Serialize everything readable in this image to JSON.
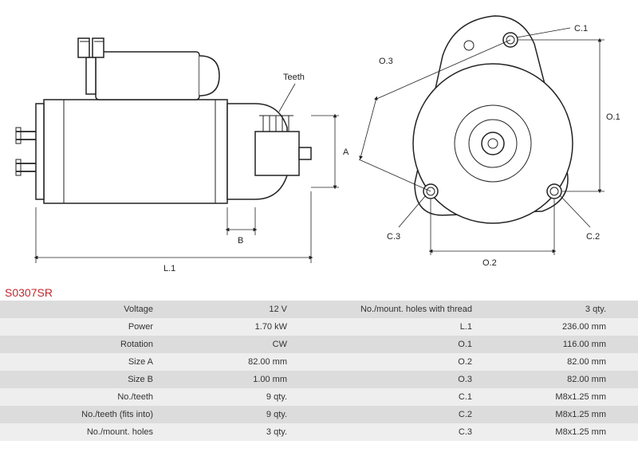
{
  "part_number": "S0307SR",
  "diagram": {
    "type": "engineering-drawing",
    "stroke_color": "#222222",
    "background_color": "#ffffff",
    "label_fontsize": 11,
    "side_view": {
      "labels": {
        "teeth": "Teeth",
        "A": "A",
        "B": "B",
        "L1": "L.1"
      }
    },
    "front_view": {
      "labels": {
        "O1": "O.1",
        "O2": "O.2",
        "O3": "O.3",
        "C1": "C.1",
        "C2": "C.2",
        "C3": "C.3"
      }
    }
  },
  "spec_table": {
    "header_bg_odd": "#dcdcdc",
    "header_bg_even": "#eeeeee",
    "text_color": "#333333",
    "fontsize": 11,
    "rows": [
      {
        "l1": "Voltage",
        "v1": "12 V",
        "l2": "No./mount. holes with thread",
        "v2": "3 qty."
      },
      {
        "l1": "Power",
        "v1": "1.70 kW",
        "l2": "L.1",
        "v2": "236.00 mm"
      },
      {
        "l1": "Rotation",
        "v1": "CW",
        "l2": "O.1",
        "v2": "116.00 mm"
      },
      {
        "l1": "Size A",
        "v1": "82.00 mm",
        "l2": "O.2",
        "v2": "82.00 mm"
      },
      {
        "l1": "Size B",
        "v1": "1.00 mm",
        "l2": "O.3",
        "v2": "82.00 mm"
      },
      {
        "l1": "No./teeth",
        "v1": "9 qty.",
        "l2": "C.1",
        "v2": "M8x1.25 mm"
      },
      {
        "l1": "No./teeth (fits into)",
        "v1": "9 qty.",
        "l2": "C.2",
        "v2": "M8x1.25 mm"
      },
      {
        "l1": "No./mount. holes",
        "v1": "3 qty.",
        "l2": "C.3",
        "v2": "M8x1.25 mm"
      }
    ]
  }
}
